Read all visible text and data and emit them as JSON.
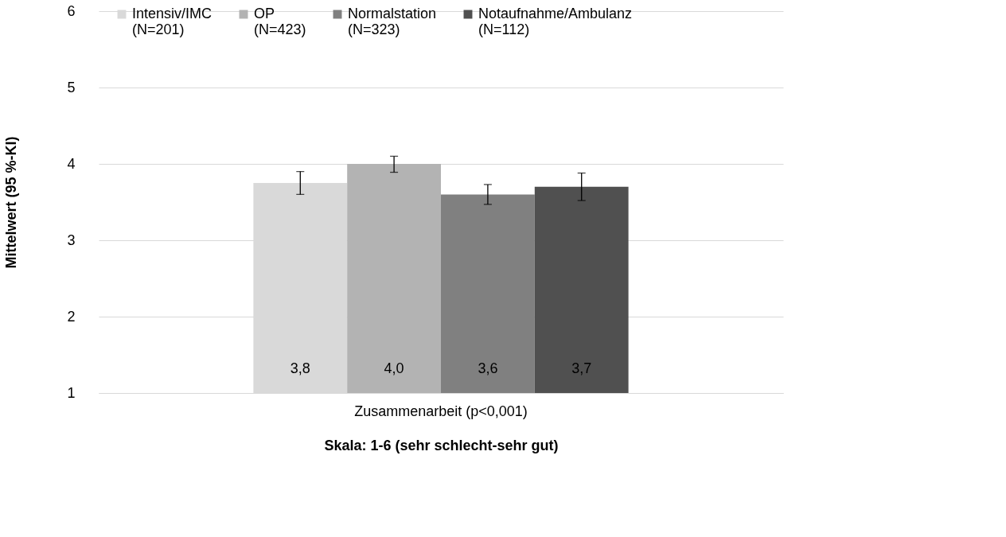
{
  "chart_data": {
    "type": "bar",
    "ylabel": "Mittelwert (95 %-KI)",
    "xlabel": "Skala: 1-6 (sehr schlecht-sehr gut)",
    "categories": [
      "Zusammenarbeit (p<0,001)"
    ],
    "series": [
      {
        "name": "Intensiv/IMC\n(N=201)",
        "color": "#d9d9d9",
        "values": [
          3.75
        ],
        "value_labels": [
          "3,8"
        ],
        "errors": [
          [
            3.6,
            3.9
          ]
        ]
      },
      {
        "name": "OP\n(N=423)",
        "color": "#b3b3b3",
        "values": [
          4.0
        ],
        "value_labels": [
          "4,0"
        ],
        "errors": [
          [
            3.89,
            4.1
          ]
        ]
      },
      {
        "name": "Normalstation\n(N=323)",
        "color": "#808080",
        "values": [
          3.6
        ],
        "value_labels": [
          "3,6"
        ],
        "errors": [
          [
            3.47,
            3.73
          ]
        ]
      },
      {
        "name": "Notaufnahme/Ambulanz\n(N=112)",
        "color": "#505050",
        "values": [
          3.7
        ],
        "value_labels": [
          "3,7"
        ],
        "errors": [
          [
            3.52,
            3.88
          ]
        ]
      }
    ],
    "ylim": [
      1,
      6
    ],
    "yticks": [
      1,
      2,
      3,
      4,
      5,
      6
    ],
    "grid": "y",
    "legend": "top"
  }
}
